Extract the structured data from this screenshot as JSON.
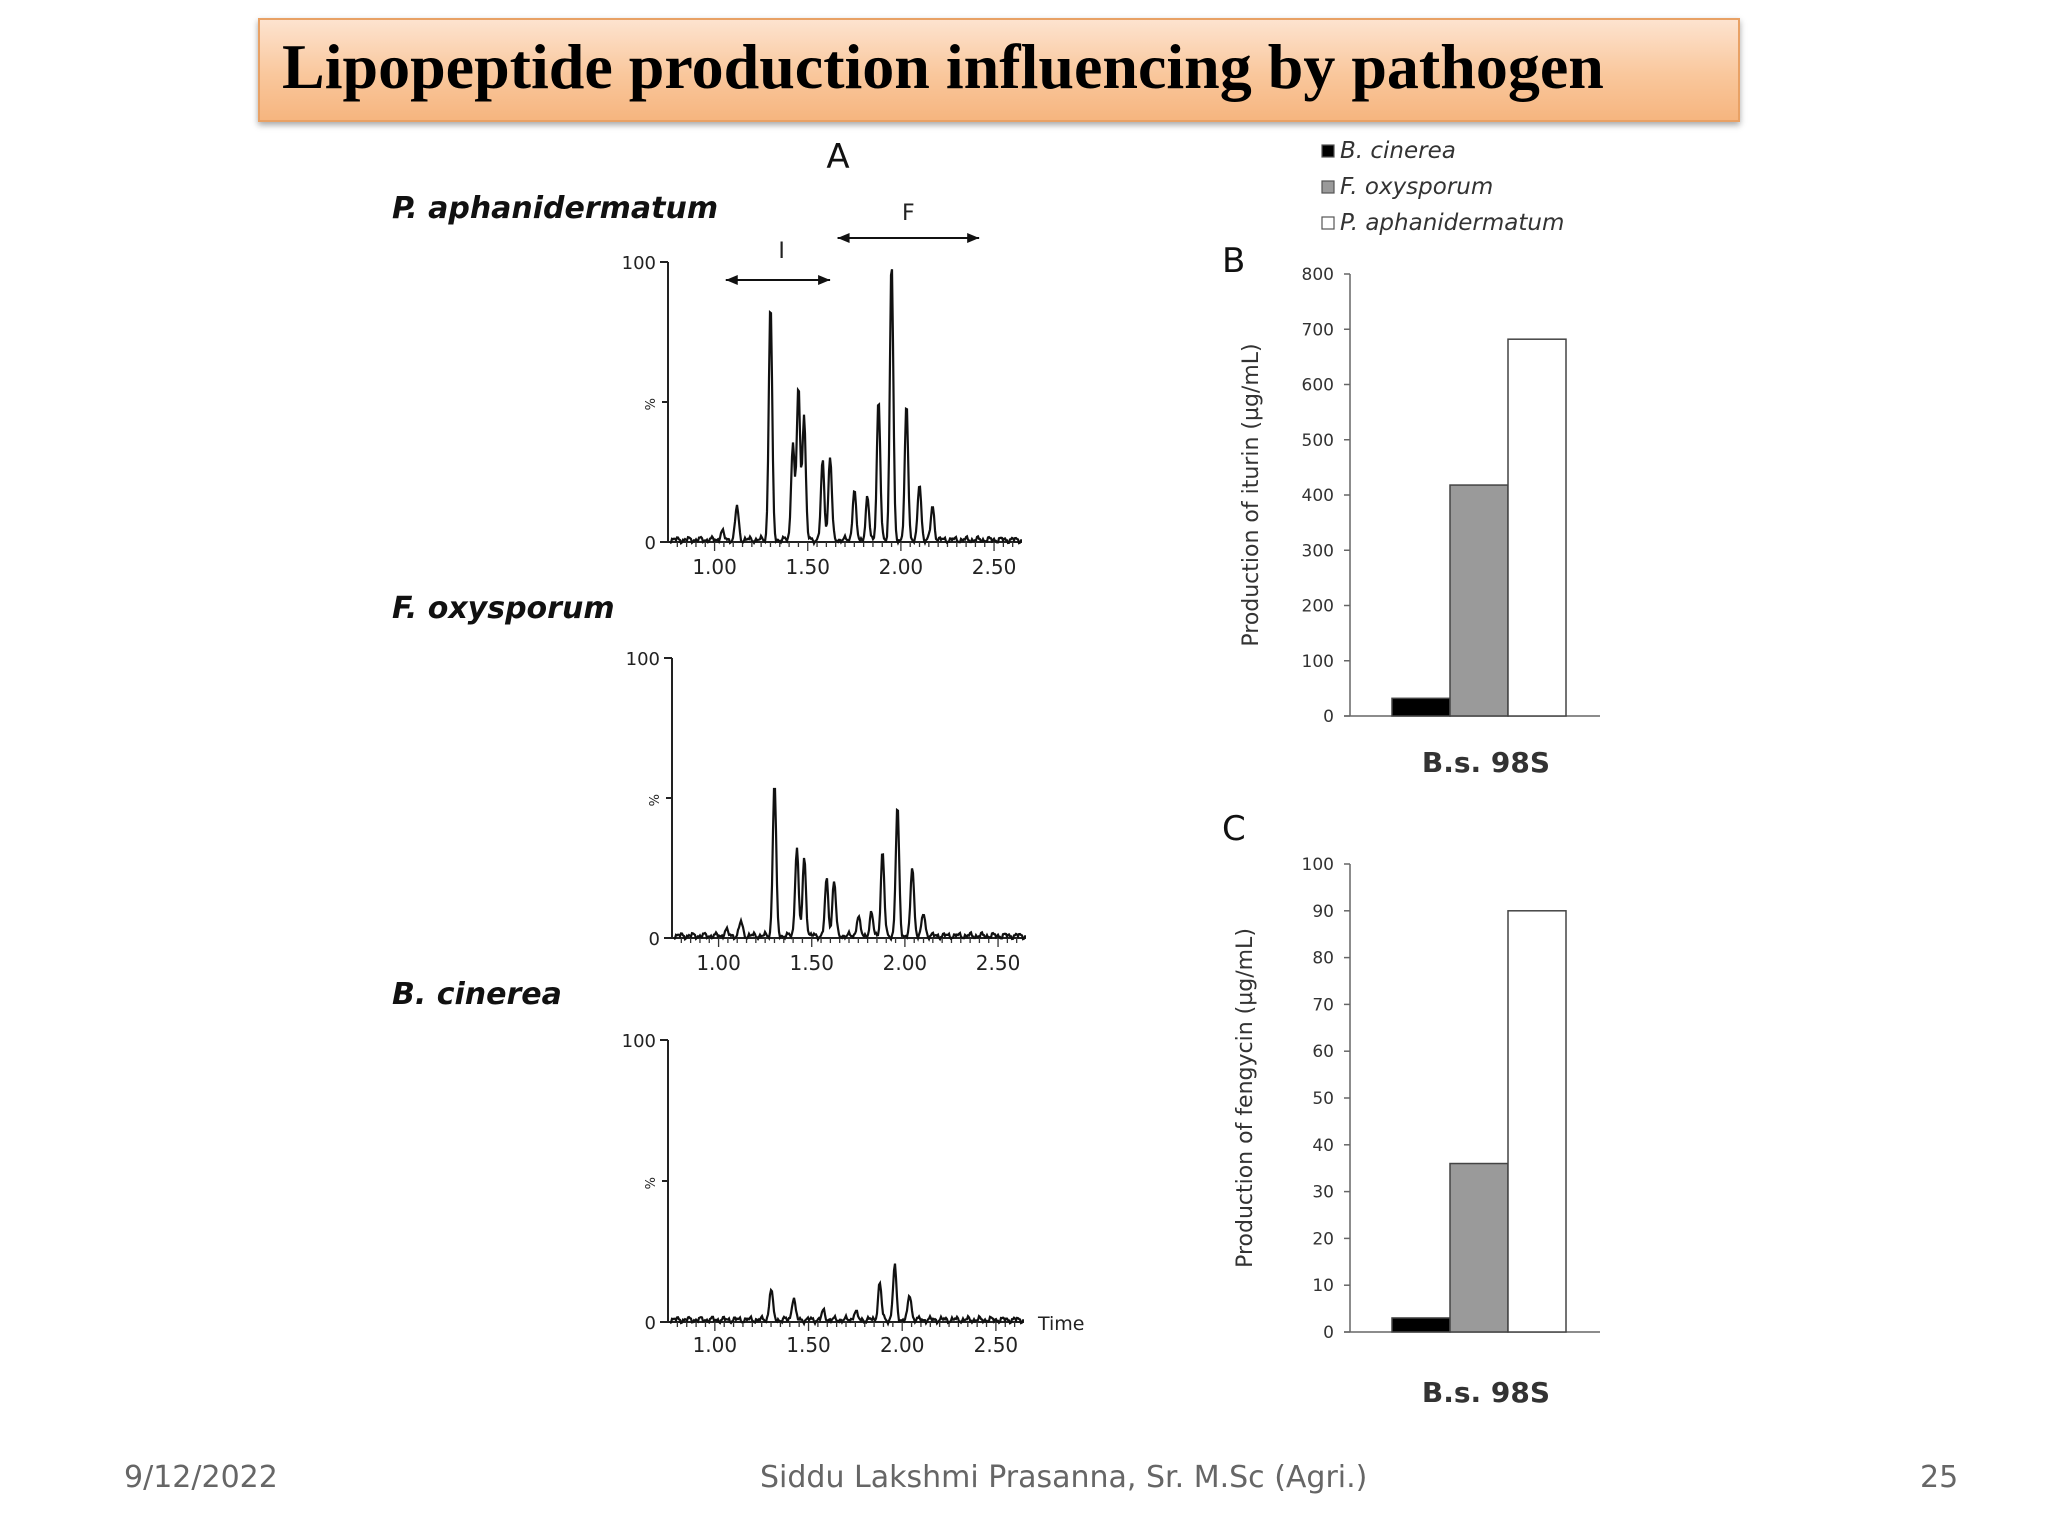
{
  "slide": {
    "title": "Lipopeptide production influencing by pathogen",
    "date": "9/12/2022",
    "author": "Siddu Lakshmi Prasanna, Sr. M.Sc (Agri.)",
    "page_number": "25"
  },
  "chart_data": [
    {
      "type": "line",
      "panel_label": "A",
      "title": "P. aphanidermatum",
      "xlabel": "",
      "ylabel": "%",
      "region_labels": [
        "I",
        "F"
      ],
      "xlim": [
        0.75,
        2.65
      ],
      "ylim": [
        0,
        100
      ],
      "x_ticks": [
        "1.00",
        "1.50",
        "2.00",
        "2.50"
      ],
      "y_ticks": [
        "0",
        "100"
      ],
      "peaks": [
        {
          "x": 1.04,
          "y": 3
        },
        {
          "x": 1.12,
          "y": 12
        },
        {
          "x": 1.3,
          "y": 85
        },
        {
          "x": 1.42,
          "y": 35
        },
        {
          "x": 1.45,
          "y": 55
        },
        {
          "x": 1.48,
          "y": 45
        },
        {
          "x": 1.58,
          "y": 28
        },
        {
          "x": 1.62,
          "y": 30
        },
        {
          "x": 1.75,
          "y": 18
        },
        {
          "x": 1.82,
          "y": 15
        },
        {
          "x": 1.88,
          "y": 50
        },
        {
          "x": 1.95,
          "y": 100
        },
        {
          "x": 2.03,
          "y": 48
        },
        {
          "x": 2.1,
          "y": 20
        },
        {
          "x": 2.17,
          "y": 12
        }
      ]
    },
    {
      "type": "line",
      "title": "F. oxysporum",
      "xlabel": "",
      "ylabel": "%",
      "xlim": [
        0.75,
        2.65
      ],
      "ylim": [
        0,
        100
      ],
      "x_ticks": [
        "1.00",
        "1.50",
        "2.00",
        "2.50"
      ],
      "y_ticks": [
        "0",
        "100"
      ],
      "peaks": [
        {
          "x": 1.04,
          "y": 2
        },
        {
          "x": 1.12,
          "y": 5
        },
        {
          "x": 1.3,
          "y": 55
        },
        {
          "x": 1.42,
          "y": 32
        },
        {
          "x": 1.46,
          "y": 28
        },
        {
          "x": 1.58,
          "y": 20
        },
        {
          "x": 1.62,
          "y": 20
        },
        {
          "x": 1.75,
          "y": 7
        },
        {
          "x": 1.82,
          "y": 8
        },
        {
          "x": 1.88,
          "y": 30
        },
        {
          "x": 1.96,
          "y": 46
        },
        {
          "x": 2.04,
          "y": 25
        },
        {
          "x": 2.1,
          "y": 8
        }
      ]
    },
    {
      "type": "line",
      "title": "B. cinerea",
      "xlabel": "Time",
      "ylabel": "%",
      "xlim": [
        0.75,
        2.65
      ],
      "ylim": [
        0,
        100
      ],
      "x_ticks": [
        "1.00",
        "1.50",
        "2.00",
        "2.50"
      ],
      "y_ticks": [
        "0",
        "100"
      ],
      "peaks": [
        {
          "x": 1.3,
          "y": 11
        },
        {
          "x": 1.42,
          "y": 8
        },
        {
          "x": 1.58,
          "y": 3
        },
        {
          "x": 1.75,
          "y": 3
        },
        {
          "x": 1.88,
          "y": 13
        },
        {
          "x": 1.96,
          "y": 19
        },
        {
          "x": 2.04,
          "y": 9
        }
      ]
    },
    {
      "type": "bar",
      "panel_label": "B",
      "title": "",
      "categories": [
        "B.s. 98S"
      ],
      "xlabel": "B.s. 98S",
      "ylabel": "Production of iturin (µg/mL)",
      "ylim": [
        0,
        800
      ],
      "y_ticks": [
        "0",
        "100",
        "200",
        "300",
        "400",
        "500",
        "600",
        "700",
        "800"
      ],
      "legend_position": "top",
      "series": [
        {
          "name": "B. cinerea",
          "color": "#000000",
          "values": [
            32
          ]
        },
        {
          "name": "F. oxysporum",
          "color": "#9a9a9a",
          "values": [
            418
          ]
        },
        {
          "name": "P. aphanidermatum",
          "color": "#ffffff",
          "values": [
            682
          ]
        }
      ]
    },
    {
      "type": "bar",
      "panel_label": "C",
      "title": "",
      "categories": [
        "B.s. 98S"
      ],
      "xlabel": "B.s. 98S",
      "ylabel": "Production of fengycin (µg/mL)",
      "ylim": [
        0,
        100
      ],
      "y_ticks": [
        "0",
        "10",
        "20",
        "30",
        "40",
        "50",
        "60",
        "70",
        "80",
        "90",
        "100"
      ],
      "series": [
        {
          "name": "B. cinerea",
          "color": "#000000",
          "values": [
            3
          ]
        },
        {
          "name": "F. oxysporum",
          "color": "#9a9a9a",
          "values": [
            36
          ]
        },
        {
          "name": "P. aphanidermatum",
          "color": "#ffffff",
          "values": [
            90
          ]
        }
      ]
    }
  ]
}
